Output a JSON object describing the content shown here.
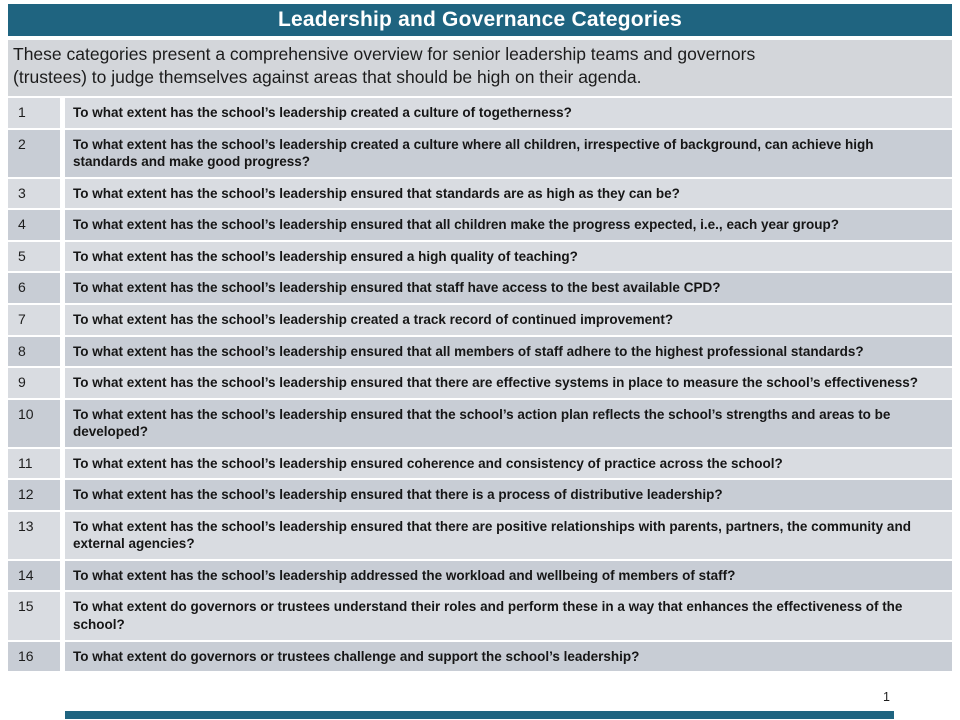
{
  "header": {
    "title": "Leadership and Governance Categories"
  },
  "description": {
    "full_text": "These categories present a comprehensive overview for senior leadership teams and governors (trustees) to judge themselves against areas that should be high on their agenda.",
    "lines": [
      "These categories present a comprehensive overview for senior leadership teams and governors",
      "(trustees) to judge themselves against areas that should be high on their agenda."
    ]
  },
  "table": {
    "rows": [
      {
        "num": "1",
        "question": "To what extent has the school’s leadership created a culture of togetherness?"
      },
      {
        "num": "2",
        "question": "To what extent has the school’s leadership created a culture where all children, irrespective of background, can achieve high standards and make good progress?"
      },
      {
        "num": "3",
        "question": "To what extent has the school’s leadership ensured that standards are as high as they can be?"
      },
      {
        "num": "4",
        "question": "To what extent has the school’s leadership ensured that all children make the progress expected, i.e., each year group?"
      },
      {
        "num": "5",
        "question": "To what extent has the school’s leadership ensured a high quality of teaching?"
      },
      {
        "num": "6",
        "question": "To what extent has the school’s leadership ensured that staff have access to the best available CPD?"
      },
      {
        "num": "7",
        "question": "To what extent has the school’s leadership created a track record of continued improvement?"
      },
      {
        "num": "8",
        "question": "To what extent has the school’s leadership ensured that all members of staff adhere to the highest professional standards?"
      },
      {
        "num": "9",
        "question": "To what extent has the school’s leadership ensured that there are effective systems in place to measure the school’s effectiveness?"
      },
      {
        "num": "10",
        "question": "To what extent has the school’s leadership ensured that the school’s action plan reflects the school’s strengths and areas to be developed?"
      },
      {
        "num": "11",
        "question": "To what extent has the school’s leadership ensured coherence and consistency of practice across the school?"
      },
      {
        "num": "12",
        "question": "To what extent has the school’s leadership ensured that there is a process of distributive leadership?"
      },
      {
        "num": "13",
        "question": "To what extent has the school’s leadership ensured that there are positive relationships with parents, partners, the community and external agencies?"
      },
      {
        "num": "14",
        "question": "To what extent has the school’s leadership addressed the workload and wellbeing of members of staff?"
      },
      {
        "num": "15",
        "question": "To what extent do governors or trustees understand their roles and perform these in a way that enhances the effectiveness of the school?"
      },
      {
        "num": "16",
        "question": "To what extent do governors or trustees challenge and support the school’s leadership?"
      }
    ]
  },
  "footer": {
    "page_number": "1"
  },
  "colors": {
    "accent_teal": "#1f6480",
    "row_light": "#d9dce1",
    "row_dark": "#c8cdd5",
    "description_bg": "#d3d6da",
    "title_text": "#ffffff",
    "body_text": "#161616"
  }
}
